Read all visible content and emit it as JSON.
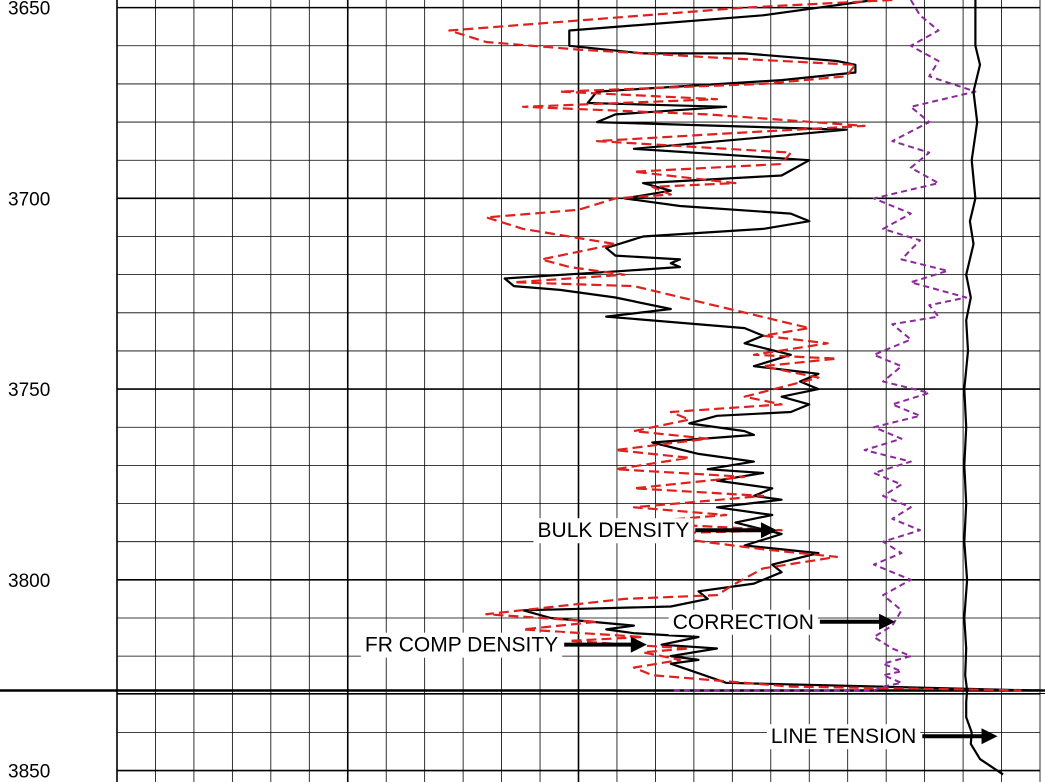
{
  "chart_data": {
    "type": "line",
    "title": "",
    "xlabel": "",
    "ylabel": "",
    "y_axis": {
      "reversed": true,
      "range": [
        3648,
        3853
      ],
      "major_ticks": [
        3650,
        3700,
        3750,
        3800,
        3850
      ],
      "tick_labels": [
        "3650",
        "3700",
        "3750",
        "3800",
        "3850"
      ]
    },
    "x_axis": {
      "range": [
        0,
        1
      ],
      "tick_labels": []
    },
    "grid": true,
    "boundary_depth": 3829,
    "annotations": [
      {
        "id": "bulk",
        "text": "BULK DENSITY",
        "depth": 3787,
        "x": 0.62,
        "arrow_to": 0.715
      },
      {
        "id": "corr",
        "text": "CORRECTION",
        "depth": 3811,
        "x": 0.755,
        "arrow_to": 0.843
      },
      {
        "id": "frcomp",
        "text": "FR COMP DENSITY",
        "depth": 3817,
        "x": 0.478,
        "arrow_to": 0.574
      },
      {
        "id": "tension",
        "text": "LINE TENSION",
        "depth": 3841,
        "x": 0.866,
        "arrow_to": 0.954
      }
    ],
    "series": [
      {
        "id": "bulk_density",
        "color": "#000000",
        "dash": "",
        "x": [
          0.82,
          0.7,
          0.49,
          0.49,
          0.57,
          0.68,
          0.78,
          0.8,
          0.8,
          0.72,
          0.52,
          0.51,
          0.66,
          0.54,
          0.52,
          0.79,
          0.7,
          0.56,
          0.75,
          0.72,
          0.57,
          0.6,
          0.55,
          0.61,
          0.73,
          0.75,
          0.7,
          0.57,
          0.53,
          0.54,
          0.61,
          0.6,
          0.61,
          0.55,
          0.42,
          0.43,
          0.48,
          0.54,
          0.6,
          0.53,
          0.68,
          0.7,
          0.68,
          0.73,
          0.69,
          0.76,
          0.74,
          0.76,
          0.72,
          0.75,
          0.73,
          0.65,
          0.62,
          0.68,
          0.69,
          0.58,
          0.63,
          0.69,
          0.64,
          0.7,
          0.65,
          0.71,
          0.69,
          0.72,
          0.65,
          0.71,
          0.67,
          0.72,
          0.68,
          0.76,
          0.71,
          0.72,
          0.69,
          0.63,
          0.64,
          0.6,
          0.44,
          0.47,
          0.56,
          0.53,
          0.56,
          0.63,
          0.59,
          0.65,
          0.6,
          0.63,
          0.6,
          0.66,
          0.99,
          1.0
        ],
        "depth": [
          3648,
          3652,
          3656,
          3660,
          3662,
          3662,
          3664,
          3665,
          3667,
          3669,
          3672,
          3675,
          3676,
          3678,
          3680,
          3682,
          3684,
          3687,
          3690,
          3694,
          3696,
          3698,
          3700,
          3702,
          3704,
          3706,
          3708,
          3710,
          3713,
          3715,
          3716,
          3717,
          3718,
          3719,
          3721,
          3723,
          3724,
          3726,
          3729,
          3731,
          3734,
          3736,
          3738,
          3741,
          3744,
          3746,
          3748,
          3750,
          3752,
          3754,
          3756,
          3757,
          3759,
          3761,
          3762,
          3764,
          3767,
          3769,
          3771,
          3772,
          3774,
          3776,
          3778,
          3779,
          3781,
          3783,
          3785,
          3788,
          3791,
          3793,
          3796,
          3798,
          3801,
          3803,
          3805,
          3807,
          3808,
          3810,
          3812,
          3813,
          3814,
          3815,
          3817,
          3818,
          3820,
          3821,
          3822,
          3827,
          3829,
          3829
        ]
      },
      {
        "id": "fr_comp_density",
        "color": "#e0201c",
        "dash": "10,5",
        "x": [
          0.84,
          0.68,
          0.36,
          0.4,
          0.5,
          0.64,
          0.8,
          0.79,
          0.7,
          0.48,
          0.65,
          0.44,
          0.64,
          0.81,
          0.66,
          0.52,
          0.73,
          0.72,
          0.56,
          0.67,
          0.58,
          0.6,
          0.54,
          0.5,
          0.4,
          0.44,
          0.54,
          0.46,
          0.49,
          0.55,
          0.43,
          0.56,
          0.75,
          0.7,
          0.77,
          0.69,
          0.78,
          0.7,
          0.76,
          0.68,
          0.72,
          0.6,
          0.62,
          0.56,
          0.64,
          0.54,
          0.62,
          0.54,
          0.68,
          0.56,
          0.7,
          0.56,
          0.66,
          0.56,
          0.72,
          0.57,
          0.7,
          0.78,
          0.7,
          0.67,
          0.65,
          0.55,
          0.4,
          0.52,
          0.44,
          0.57,
          0.49,
          0.62,
          0.57,
          0.61,
          0.56,
          0.58,
          0.73,
          0.98
        ],
        "depth": [
          3648,
          3650,
          3656,
          3659,
          3661,
          3663,
          3665,
          3668,
          3670,
          3672,
          3674,
          3676,
          3678,
          3681,
          3683,
          3685,
          3688,
          3691,
          3693,
          3696,
          3697,
          3699,
          3700,
          3703,
          3705,
          3708,
          3712,
          3716,
          3718,
          3720,
          3722,
          3723,
          3734,
          3736,
          3738,
          3741,
          3742,
          3744,
          3747,
          3752,
          3754,
          3756,
          3758,
          3761,
          3763,
          3766,
          3768,
          3771,
          3773,
          3776,
          3778,
          3781,
          3783,
          3785,
          3787,
          3788,
          3792,
          3794,
          3797,
          3801,
          3804,
          3805,
          3809,
          3811,
          3813,
          3815,
          3816,
          3818,
          3819,
          3821,
          3823,
          3825,
          3828,
          3829
        ]
      },
      {
        "id": "correction",
        "color": "#8a2a9a",
        "dash": "6,4",
        "x": [
          0.86,
          0.87,
          0.89,
          0.86,
          0.89,
          0.88,
          0.93,
          0.86,
          0.88,
          0.84,
          0.88,
          0.86,
          0.89,
          0.82,
          0.86,
          0.83,
          0.87,
          0.85,
          0.9,
          0.86,
          0.92,
          0.88,
          0.89,
          0.84,
          0.86,
          0.82,
          0.85,
          0.83,
          0.88,
          0.84,
          0.87,
          0.82,
          0.85,
          0.81,
          0.86,
          0.82,
          0.85,
          0.83,
          0.86,
          0.84,
          0.87,
          0.83,
          0.85,
          0.82,
          0.86,
          0.83,
          0.85,
          0.84,
          0.82,
          0.84,
          0.86,
          0.83,
          0.85,
          0.83,
          0.84,
          0.85,
          0.83,
          0.82,
          0.82,
          0.6
        ],
        "depth": [
          3648,
          3652,
          3656,
          3660,
          3664,
          3668,
          3672,
          3676,
          3680,
          3685,
          3688,
          3692,
          3696,
          3700,
          3704,
          3708,
          3711,
          3716,
          3719,
          3722,
          3726,
          3728,
          3731,
          3733,
          3737,
          3741,
          3744,
          3748,
          3751,
          3754,
          3757,
          3760,
          3763,
          3766,
          3769,
          3772,
          3775,
          3778,
          3781,
          3784,
          3787,
          3790,
          3793,
          3796,
          3800,
          3804,
          3808,
          3812,
          3815,
          3818,
          3820,
          3822,
          3824,
          3825,
          3826,
          3827,
          3828,
          3829,
          3829,
          3829
        ]
      },
      {
        "id": "line_tension",
        "color": "#000000",
        "dash": "",
        "x": [
          0.93,
          0.93,
          0.935,
          0.928,
          0.932,
          0.926,
          0.93,
          0.924,
          0.928,
          0.92,
          0.925,
          0.92,
          0.922,
          0.918,
          0.92,
          0.918,
          0.92,
          0.918,
          0.921,
          0.918,
          0.92,
          0.919,
          0.921,
          0.92,
          0.92,
          0.926,
          0.925,
          0.935,
          0.96
        ],
        "depth": [
          3648,
          3660,
          3665,
          3672,
          3680,
          3690,
          3700,
          3706,
          3712,
          3720,
          3726,
          3732,
          3740,
          3750,
          3760,
          3770,
          3780,
          3790,
          3800,
          3810,
          3818,
          3825,
          3829,
          3832,
          3836,
          3840,
          3843,
          3847,
          3851
        ]
      }
    ]
  }
}
